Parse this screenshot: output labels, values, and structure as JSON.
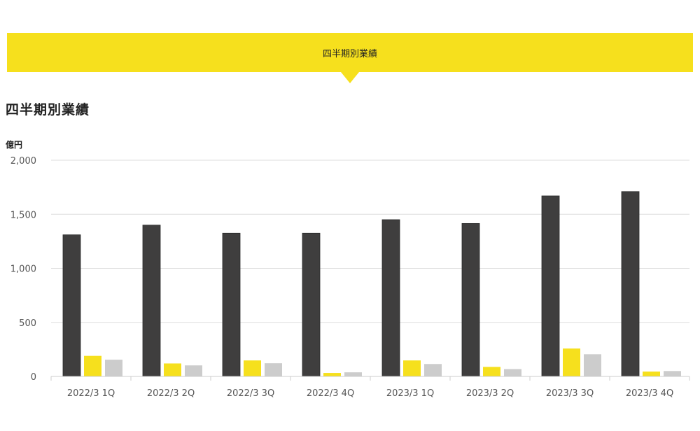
{
  "tab": {
    "label": "四半期別業績"
  },
  "section_title": "四半期別業績",
  "colors": {
    "accent": "#f6e01d",
    "series_dark": "#3f3e3e",
    "series_yellow": "#f6e01d",
    "series_gray": "#cccccc"
  },
  "chart_data": {
    "type": "bar",
    "unit_label": "億円",
    "categories": [
      "2022/3 1Q",
      "2022/3 2Q",
      "2022/3 3Q",
      "2022/3 4Q",
      "2023/3 1Q",
      "2023/3 2Q",
      "2023/3 3Q",
      "2023/3 4Q"
    ],
    "series": [
      {
        "color": "#3f3e3e",
        "values": [
          1310,
          1400,
          1325,
          1325,
          1450,
          1415,
          1670,
          1710
        ]
      },
      {
        "color": "#f6e01d",
        "values": [
          190,
          120,
          148,
          32,
          148,
          88,
          258,
          45
        ]
      },
      {
        "color": "#cccccc",
        "values": [
          155,
          102,
          122,
          38,
          115,
          68,
          205,
          50
        ]
      }
    ],
    "ylim": [
      0,
      2000
    ],
    "yticks": [
      0,
      500,
      1000,
      1500,
      2000
    ],
    "ytick_labels": [
      "0",
      "500",
      "1,000",
      "1,500",
      "2,000"
    ],
    "grid": true,
    "legend": "none"
  }
}
